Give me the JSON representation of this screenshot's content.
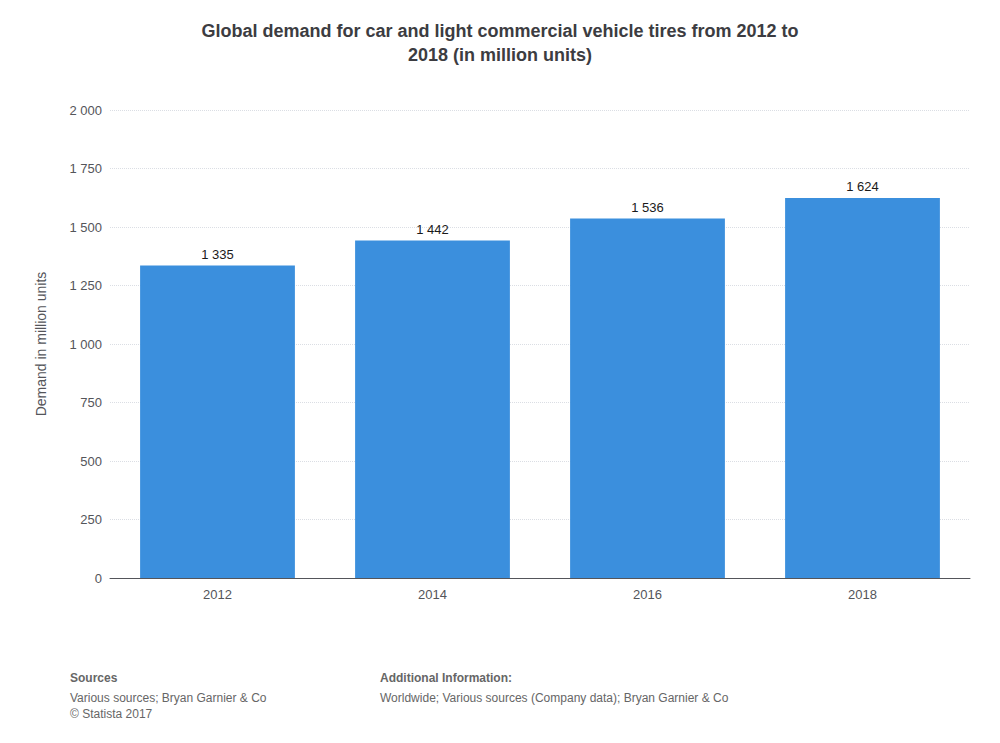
{
  "chart_data": {
    "type": "bar",
    "title": "Global demand for car and light commercial vehicle tires from 2012 to\n2018 (in million units)",
    "categories": [
      "2012",
      "2014",
      "2016",
      "2018"
    ],
    "values": [
      1335,
      1442,
      1536,
      1624
    ],
    "value_labels": [
      "1 335",
      "1 442",
      "1 536",
      "1 624"
    ],
    "data_labels": true,
    "color": "#3b8fdd",
    "ylabel": "Demand in million units",
    "ylim": [
      0,
      2000
    ],
    "yticks": [
      0,
      250,
      500,
      750,
      {
        "value": 1000,
        "label": "1 000"
      },
      {
        "value": 1250,
        "label": "1 250"
      },
      {
        "value": 1500,
        "label": "1 500"
      },
      {
        "value": 1750,
        "label": "1 750"
      },
      {
        "value": 2000,
        "label": "2 000"
      }
    ],
    "grid": true,
    "annotations": [
      "Sources",
      "Various sources; Bryan Garnier & Co\n© Statista 2017",
      "Additional Information:",
      "Worldwide; Various sources (Company data); Bryan Garnier & Co"
    ]
  }
}
